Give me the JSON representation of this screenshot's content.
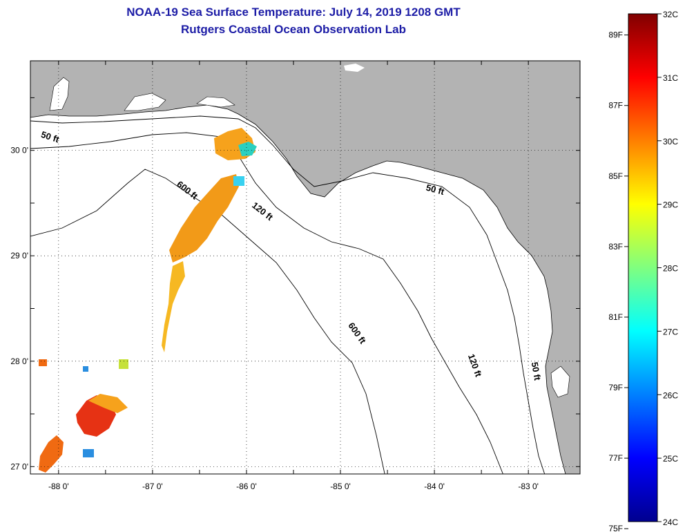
{
  "title": "NOAA-19 Sea Surface Temperature:  July 14, 2019 1208 GMT",
  "subtitle": "Rutgers Coastal Ocean Observation Lab",
  "map": {
    "lon_range": [
      -88.3,
      -82.45
    ],
    "lat_range": [
      26.93,
      30.85
    ],
    "lon_ticks": [
      "-88 0'",
      "-87 0'",
      "-86 0'",
      "-85 0'",
      "-84 0'",
      "-83 0'"
    ],
    "lat_ticks": [
      "27 0'",
      "28 0'",
      "29 0'",
      "30 0'"
    ],
    "grid": "dotted",
    "land_color": "#b3b3b3",
    "water_color": "#ffffff",
    "contour_labels": [
      {
        "text": "50 ft",
        "lon": -88.1,
        "lat": 30.1,
        "rot": 18
      },
      {
        "text": "600 ft",
        "lon": -86.65,
        "lat": 29.6,
        "rot": 38
      },
      {
        "text": "120 ft",
        "lon": -85.85,
        "lat": 29.4,
        "rot": 38
      },
      {
        "text": "50 ft",
        "lon": -84.0,
        "lat": 29.6,
        "rot": 15
      },
      {
        "text": "600 ft",
        "lon": -84.85,
        "lat": 28.25,
        "rot": 55
      },
      {
        "text": "120 ft",
        "lon": -83.6,
        "lat": 27.95,
        "rot": 70
      },
      {
        "text": "50 ft",
        "lon": -82.95,
        "lat": 27.9,
        "rot": 80
      }
    ]
  },
  "colorbar": {
    "min_c": 24,
    "max_c": 32,
    "celsius_labels": [
      "32C",
      "31C",
      "30C",
      "29C",
      "28C",
      "27C",
      "26C",
      "25C",
      "24C"
    ],
    "fahrenheit_labels": [
      "89F",
      "87F",
      "85F",
      "83F",
      "81F",
      "79F",
      "77F",
      "75F"
    ]
  },
  "sst_patches": [
    {
      "lon": -86.2,
      "lat": 30.05,
      "temp": 29.8
    },
    {
      "lon": -86.0,
      "lat": 30.05,
      "temp": 27.5
    },
    {
      "lon": -86.4,
      "lat": 29.6,
      "temp": 29.6
    },
    {
      "lon": -86.55,
      "lat": 29.35,
      "temp": 29.5
    },
    {
      "lon": -86.7,
      "lat": 29.05,
      "temp": 29.4
    },
    {
      "lon": -86.8,
      "lat": 28.7,
      "temp": 29.2
    },
    {
      "lon": -87.6,
      "lat": 27.5,
      "temp": 31.0
    },
    {
      "lon": -88.0,
      "lat": 27.1,
      "temp": 30.2
    }
  ]
}
